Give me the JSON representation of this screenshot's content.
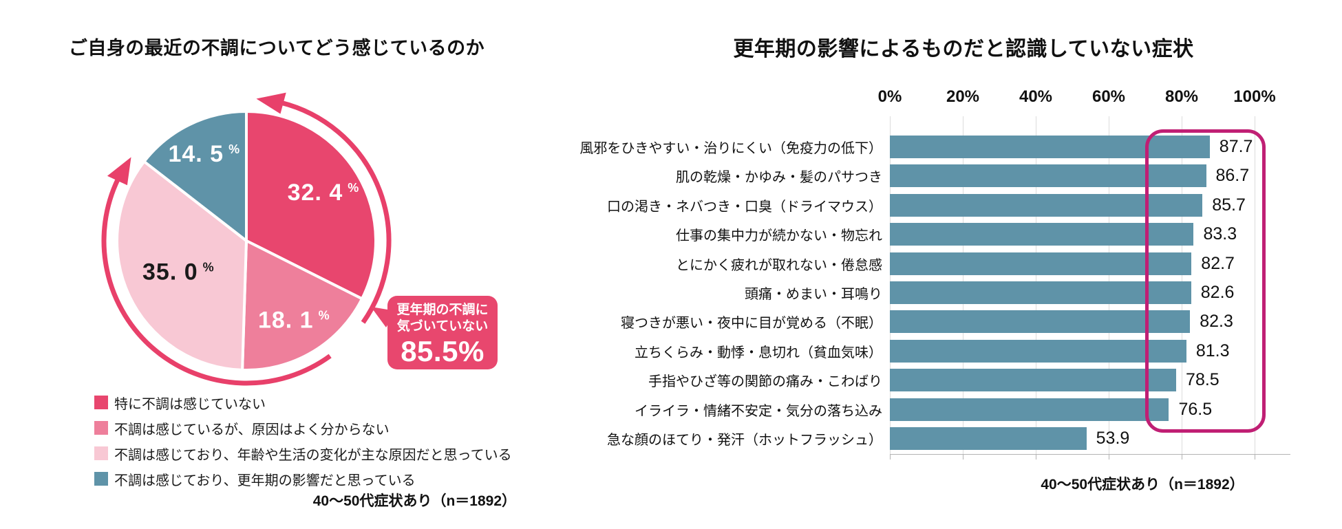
{
  "chart_data": [
    {
      "type": "pie",
      "title": "ご自身の最近の不調についてどう感じているのか",
      "unit": "%",
      "values": [
        32.4,
        18.1,
        35.0,
        14.5
      ],
      "display_values": [
        "32. 4",
        "18. 1",
        "35. 0",
        "14. 5"
      ],
      "labels": [
        "特に不調は感じていない",
        "不調は感じているが、原因はよく分からない",
        "不調は感じており、年齢や生活の変化が主な原因だと思っている",
        "不調は感じており、更年期の影響だと思っている"
      ],
      "colors": [
        "#e8466e",
        "#ee7f9b",
        "#f8c8d4",
        "#5f93a8"
      ],
      "value_label_colors": [
        "#ffffff",
        "#ffffff",
        "#1a1a1a",
        "#ffffff"
      ],
      "start_angle_deg": 0,
      "direction": "clockwise",
      "arrow_color": "#e8406a",
      "annotation": {
        "line1": "更年期の不調に",
        "line2": "気づいていない",
        "value": "85.5%",
        "bg_color": "#e8476e",
        "covers_slices": [
          0,
          1,
          2
        ]
      },
      "footnote": "40〜50代症状あり（n＝1892）"
    },
    {
      "type": "bar",
      "orientation": "horizontal",
      "title": "更年期の影響によるものだと認識していない症状",
      "categories": [
        "風邪をひきやすい・治りにくい（免疫力の低下）",
        "肌の乾燥・かゆみ・髪のパサつき",
        "口の渇き・ネバつき・口臭（ドライマウス）",
        "仕事の集中力が続かない・物忘れ",
        "とにかく疲れが取れない・倦怠感",
        "頭痛・めまい・耳鳴り",
        "寝つきが悪い・夜中に目が覚める（不眠）",
        "立ちくらみ・動悸・息切れ（貧血気味）",
        "手指やひざ等の関節の痛み・こわばり",
        "イライラ・情緒不安定・気分の落ち込み",
        "急な顔のほてり・発汗（ホットフラッシュ）"
      ],
      "values": [
        87.7,
        86.7,
        85.7,
        83.3,
        82.7,
        82.6,
        82.3,
        81.3,
        78.5,
        76.5,
        53.9
      ],
      "axis_ticks": [
        0,
        20,
        40,
        60,
        80,
        100
      ],
      "axis_tick_labels": [
        "0%",
        "20%",
        "40%",
        "60%",
        "80%",
        "100%"
      ],
      "xlim": [
        0,
        107
      ],
      "grid": true,
      "bar_color": "#5f93a8",
      "value_label_color": "#111111",
      "highlight_box": {
        "color": "#c01f74",
        "x_from_percent": 70,
        "x_to_percent": 103,
        "row_from": 1,
        "row_to": 10
      },
      "footnote": "40〜50代症状あり（n＝1892）"
    }
  ]
}
